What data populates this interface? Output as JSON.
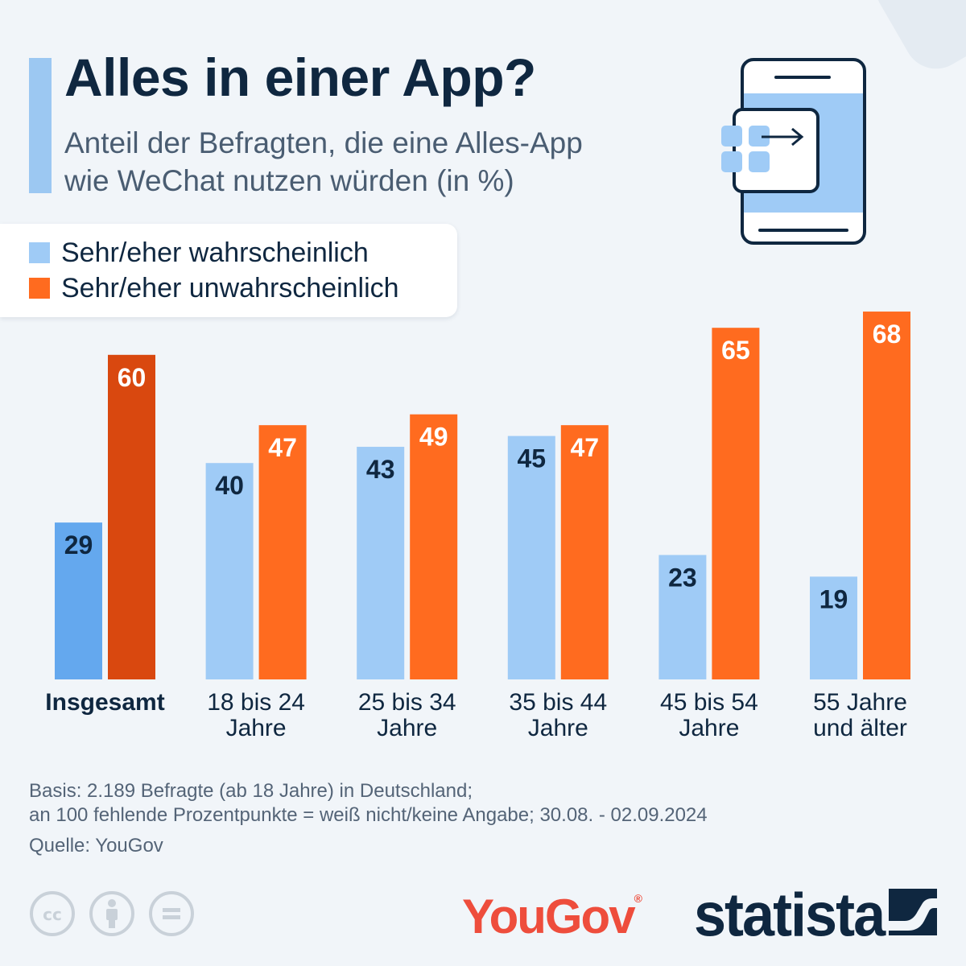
{
  "header": {
    "title": "Alles in einer App?",
    "subtitle_lines": [
      "Anteil der Befragten, die eine Alles-App",
      "wie WeChat nutzen würden (in %)"
    ]
  },
  "colors": {
    "likely": "#9fcbf6",
    "likely_highlight": "#64a8ee",
    "unlikely": "#ff6b1f",
    "unlikely_highlight": "#d9480f",
    "accent": "#9cc8f2",
    "text_dark": "#0f2740"
  },
  "legend": [
    {
      "label": "Sehr/eher wahrscheinlich",
      "color": "#9fcbf6"
    },
    {
      "label": "Sehr/eher unwahrscheinlich",
      "color": "#ff6b1f"
    }
  ],
  "chart_data": {
    "type": "bar",
    "categories": [
      [
        "Insgesamt"
      ],
      [
        "18 bis 24",
        "Jahre"
      ],
      [
        "25 bis 34",
        "Jahre"
      ],
      [
        "35 bis 44",
        "Jahre"
      ],
      [
        "45 bis 54",
        "Jahre"
      ],
      [
        "55 Jahre",
        "und älter"
      ]
    ],
    "highlight_category": 0,
    "series": [
      {
        "name": "Sehr/eher wahrscheinlich",
        "values": [
          29,
          40,
          43,
          45,
          23,
          19
        ]
      },
      {
        "name": "Sehr/eher unwahrscheinlich",
        "values": [
          60,
          47,
          49,
          47,
          65,
          68
        ]
      }
    ],
    "ylim": [
      0,
      100
    ],
    "grid": false,
    "data_labels": true,
    "legend_position": "top-left"
  },
  "footer": {
    "note_lines": [
      "Basis: 2.189 Befragte (ab 18 Jahre) in Deutschland;",
      "an 100 fehlende Prozentpunkte = weiß nicht/keine Angabe; 30.08. - 02.09.2024"
    ],
    "source": "Quelle: YouGov",
    "license_icons": [
      "cc-icon",
      "attribution-icon",
      "no-derivatives-icon"
    ],
    "partner_logo": "YouGov",
    "partner_logo_mark": "®",
    "brand_logo": "statista"
  }
}
